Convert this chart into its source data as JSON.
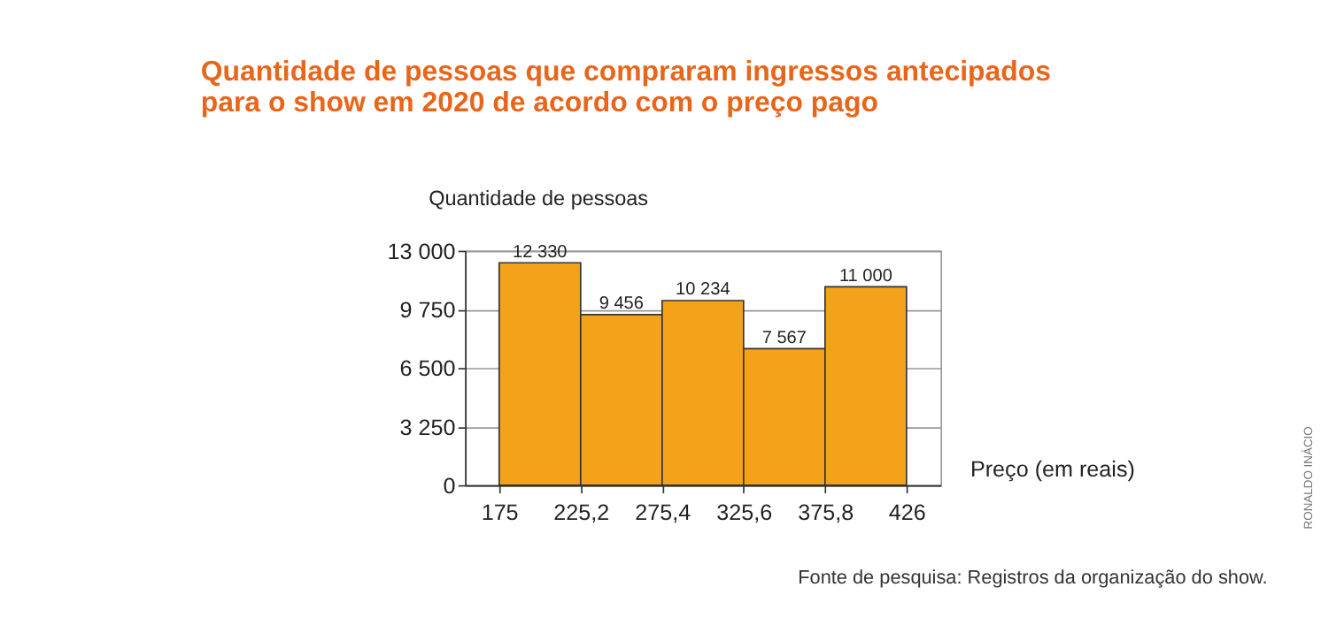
{
  "chart_data": {
    "type": "histogram",
    "title": [
      "Quantidade de pessoas que compraram ingressos antecipados",
      "para o show em 2020 de acordo com o preço pago"
    ],
    "ylabel": "Quantidade de pessoas",
    "xlabel": "Preço (em reais)",
    "bins": [
      175,
      225.2,
      275.4,
      325.6,
      375.8,
      426
    ],
    "values": [
      12330,
      9456,
      10234,
      7567,
      11000
    ],
    "value_labels": [
      "12 330",
      "9 456",
      "10 234",
      "7 567",
      "11 000"
    ],
    "color": "#f5a21b",
    "xlim": [
      154,
      447
    ],
    "xticks": [
      175,
      {
        "value": 225.2,
        "label": "225,2"
      },
      {
        "value": 275.4,
        "label": "275,4"
      },
      {
        "value": 325.6,
        "label": "325,6"
      },
      {
        "value": 375.8,
        "label": "375,8"
      },
      426
    ],
    "ylim": [
      0,
      13000
    ],
    "yticks": [
      0,
      {
        "value": 3250,
        "label": "3 250"
      },
      {
        "value": 6500,
        "label": "6 500"
      },
      {
        "value": 9750,
        "label": "9 750"
      },
      {
        "value": 13000,
        "label": "13 000"
      }
    ],
    "grid": "y",
    "annotations": [
      "Fonte de pesquisa: Registros da organização do show.",
      "RONALDO INÁCIO"
    ]
  }
}
